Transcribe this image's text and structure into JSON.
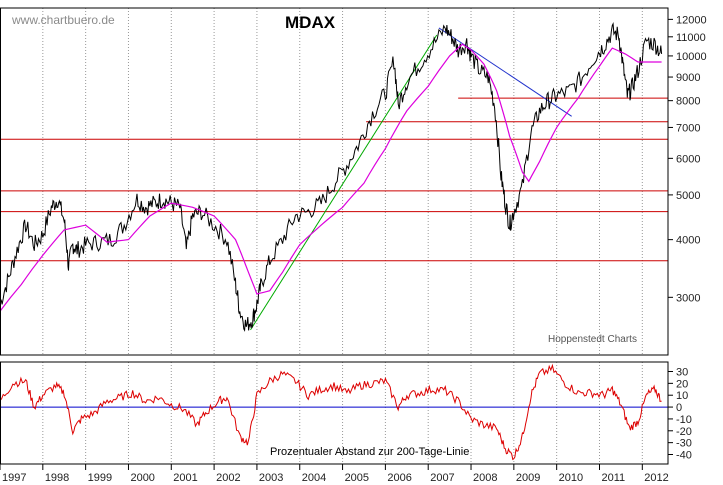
{
  "chart_data": [
    {
      "type": "line",
      "title": "MDAX",
      "watermark": "www.chartbuero.de",
      "source": "Hoppenstedt Charts",
      "y_scale": "log",
      "ylim": [
        2250,
        12700
      ],
      "yticks": [
        3000,
        4000,
        5000,
        6000,
        7000,
        8000,
        9000,
        10000,
        11000,
        12000
      ],
      "x_range": [
        1997.0,
        2012.6
      ],
      "x_tick_labels": [
        "1997",
        "1998",
        "1999",
        "2000",
        "2001",
        "2002",
        "2003",
        "2004",
        "2005",
        "2006",
        "2007",
        "2008",
        "2009",
        "2010",
        "2011",
        "2012"
      ],
      "grid": "vertical-dotted",
      "colors": {
        "price": "#000000",
        "moving_average_200": "#dd00dd",
        "horizontal_levels": "#cc0000",
        "uptrend_line": "#00aa00",
        "downtrend_line": "#2233cc"
      },
      "series": [
        {
          "role": "price",
          "x": [
            1997.0,
            1997.2,
            1997.4,
            1997.6,
            1997.8,
            1998.0,
            1998.2,
            1998.35,
            1998.5,
            1998.6,
            1998.7,
            1998.8,
            1999.0,
            1999.3,
            1999.6,
            1999.9,
            2000.2,
            2000.4,
            2000.6,
            2000.8,
            2001.0,
            2001.2,
            2001.35,
            2001.5,
            2001.7,
            2002.0,
            2002.3,
            2002.5,
            2002.6,
            2002.75,
            2002.9,
            2003.0,
            2003.1,
            2003.3,
            2003.6,
            2003.9,
            2004.2,
            2004.5,
            2004.8,
            2005.1,
            2005.4,
            2005.7,
            2006.0,
            2006.2,
            2006.3,
            2006.5,
            2006.8,
            2007.1,
            2007.4,
            2007.55,
            2007.7,
            2007.9,
            2008.0,
            2008.2,
            2008.4,
            2008.55,
            2008.7,
            2008.8,
            2008.9,
            2009.0,
            2009.2,
            2009.4,
            2009.6,
            2009.8,
            2010.0,
            2010.3,
            2010.6,
            2010.9,
            2011.1,
            2011.3,
            2011.45,
            2011.55,
            2011.65,
            2011.75,
            2011.9,
            2012.1,
            2012.3,
            2012.45
          ],
          "y": [
            2900,
            3300,
            3800,
            4300,
            3900,
            4100,
            4700,
            4900,
            4400,
            3500,
            3900,
            3800,
            3900,
            3950,
            4000,
            4300,
            4900,
            4700,
            4800,
            4900,
            4800,
            4700,
            3800,
            4500,
            4600,
            4300,
            4000,
            3200,
            2800,
            2600,
            2700,
            2900,
            3200,
            3600,
            4000,
            4500,
            4600,
            4800,
            5300,
            5800,
            6500,
            7500,
            8300,
            9800,
            7800,
            8800,
            9600,
            10500,
            11500,
            11000,
            10300,
            10700,
            10000,
            9300,
            9000,
            7800,
            5500,
            4800,
            4300,
            4600,
            5200,
            6800,
            7600,
            8000,
            8200,
            8400,
            9000,
            10000,
            10500,
            11300,
            11100,
            9500,
            8200,
            8500,
            9300,
            10800,
            10600,
            10100
          ]
        },
        {
          "role": "moving_average_200",
          "x": [
            1997.0,
            1997.5,
            1998.0,
            1998.5,
            1999.0,
            1999.5,
            2000.0,
            2000.5,
            2001.0,
            2001.5,
            2002.0,
            2002.5,
            2002.8,
            2003.0,
            2003.3,
            2003.6,
            2004.0,
            2004.5,
            2005.0,
            2005.5,
            2006.0,
            2006.5,
            2007.0,
            2007.5,
            2007.8,
            2008.0,
            2008.3,
            2008.6,
            2008.9,
            2009.2,
            2009.35,
            2009.6,
            2010.0,
            2010.5,
            2011.0,
            2011.3,
            2011.6,
            2011.9,
            2012.2,
            2012.45
          ],
          "y": [
            2800,
            3200,
            3700,
            4200,
            4300,
            3950,
            4000,
            4500,
            4800,
            4700,
            4500,
            4000,
            3400,
            3050,
            3100,
            3400,
            3900,
            4300,
            4700,
            5300,
            6300,
            7600,
            8600,
            10000,
            10600,
            10300,
            9600,
            8400,
            6700,
            5600,
            5350,
            5900,
            7000,
            8100,
            9500,
            10400,
            10100,
            9700,
            9700,
            9700
          ]
        }
      ],
      "horizontal_levels": [
        3600,
        4600,
        5100,
        6600,
        7200,
        8100
      ],
      "trendlines": [
        {
          "role": "uptrend",
          "from": [
            2002.85,
            2550
          ],
          "to": [
            2007.2,
            11100
          ]
        },
        {
          "role": "downtrend",
          "from": [
            2007.25,
            11500
          ],
          "to": [
            2010.35,
            7400
          ]
        }
      ]
    },
    {
      "type": "line",
      "label": "Prozentualer Abstand zur 200-Tage-Linie",
      "ylim": [
        -48,
        38
      ],
      "yticks": [
        30,
        20,
        10,
        0,
        -10,
        -20,
        -30,
        -40
      ],
      "reference_line": 0,
      "colors": {
        "oscillator": "#dd0000",
        "zero_line": "#0000cc"
      },
      "series": [
        {
          "role": "oscillator",
          "x": [
            1997.0,
            1997.3,
            1997.6,
            1997.8,
            1998.0,
            1998.3,
            1998.5,
            1998.7,
            1998.9,
            1999.2,
            1999.5,
            1999.8,
            2000.1,
            2000.4,
            2000.7,
            2001.0,
            2001.3,
            2001.6,
            2001.8,
            2002.1,
            2002.3,
            2002.6,
            2002.8,
            2003.0,
            2003.3,
            2003.6,
            2003.9,
            2004.2,
            2004.5,
            2004.8,
            2005.1,
            2005.4,
            2005.7,
            2006.0,
            2006.3,
            2006.5,
            2006.8,
            2007.1,
            2007.4,
            2007.7,
            2008.0,
            2008.3,
            2008.6,
            2008.8,
            2009.0,
            2009.2,
            2009.4,
            2009.6,
            2009.9,
            2010.2,
            2010.5,
            2010.8,
            2011.1,
            2011.3,
            2011.5,
            2011.7,
            2011.9,
            2012.1,
            2012.3,
            2012.45
          ],
          "y": [
            5,
            20,
            22,
            0,
            10,
            18,
            12,
            -20,
            -10,
            -5,
            5,
            8,
            12,
            5,
            8,
            2,
            -2,
            -15,
            -5,
            5,
            8,
            -25,
            -30,
            10,
            22,
            28,
            22,
            10,
            15,
            18,
            12,
            18,
            20,
            22,
            0,
            10,
            12,
            15,
            14,
            5,
            -10,
            -15,
            -18,
            -35,
            -42,
            -25,
            10,
            28,
            32,
            20,
            12,
            12,
            10,
            15,
            2,
            -18,
            -12,
            10,
            15,
            5
          ]
        }
      ]
    }
  ]
}
